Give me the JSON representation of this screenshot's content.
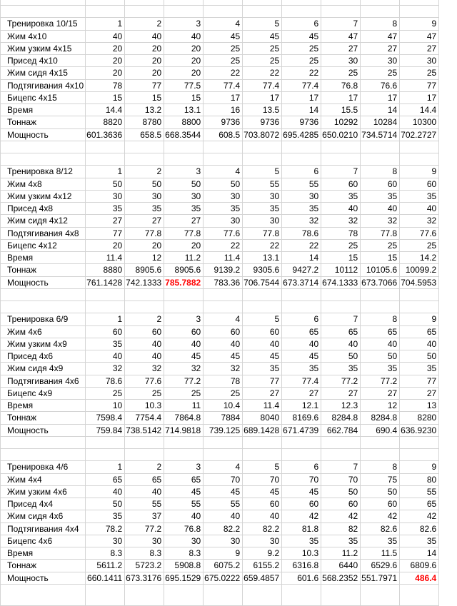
{
  "colors": {
    "grid": "#d4d4d4",
    "text": "#000000",
    "highlight": "#ff0000",
    "background": "#ffffff"
  },
  "sheet": {
    "session_headers": [
      "1",
      "2",
      "3",
      "4",
      "5",
      "6",
      "7",
      "8",
      "9"
    ],
    "blocks": [
      {
        "title": "Тренировка 10/15",
        "rows": [
          {
            "label": "Жим 4x10",
            "values": [
              "40",
              "40",
              "40",
              "45",
              "45",
              "45",
              "47",
              "47",
              "47"
            ]
          },
          {
            "label": "Жим узким 4x15",
            "values": [
              "20",
              "20",
              "20",
              "25",
              "25",
              "25",
              "27",
              "27",
              "27"
            ]
          },
          {
            "label": "Присед 4x10",
            "values": [
              "20",
              "20",
              "20",
              "25",
              "25",
              "25",
              "30",
              "30",
              "30"
            ]
          },
          {
            "label": "Жим сидя 4x15",
            "values": [
              "20",
              "20",
              "20",
              "22",
              "22",
              "22",
              "25",
              "25",
              "25"
            ]
          },
          {
            "label": "Подтягивания 4x10",
            "values": [
              "78",
              "77",
              "77.5",
              "77.4",
              "77.4",
              "77.4",
              "76.8",
              "76.6",
              "77"
            ]
          },
          {
            "label": "Бицепс 4x15",
            "values": [
              "15",
              "15",
              "15",
              "17",
              "17",
              "17",
              "17",
              "17",
              "17"
            ]
          },
          {
            "label": "Время",
            "values": [
              "14.4",
              "13.2",
              "13.1",
              "16",
              "13.5",
              "14",
              "15.5",
              "14",
              "14.4"
            ]
          },
          {
            "label": "Тоннаж",
            "values": [
              "8820",
              "8780",
              "8800",
              "9736",
              "9736",
              "9736",
              "10292",
              "10284",
              "10300"
            ]
          },
          {
            "label": "Мощность",
            "values": [
              "601.3636",
              "658.5",
              "668.3544",
              "608.5",
              "703.8072",
              "695.4285",
              "650.0210",
              "734.5714",
              "702.2727"
            ]
          }
        ]
      },
      {
        "title": "Тренировка 8/12",
        "rows": [
          {
            "label": "Жим 4x8",
            "values": [
              "50",
              "50",
              "50",
              "50",
              "55",
              "55",
              "60",
              "60",
              "60"
            ]
          },
          {
            "label": "Жим узким 4x12",
            "values": [
              "30",
              "30",
              "30",
              "30",
              "30",
              "30",
              "35",
              "35",
              "35"
            ]
          },
          {
            "label": "Присед 4x8",
            "values": [
              "35",
              "35",
              "35",
              "35",
              "35",
              "35",
              "40",
              "40",
              "40"
            ]
          },
          {
            "label": "Жим сидя 4x12",
            "values": [
              "27",
              "27",
              "27",
              "30",
              "30",
              "32",
              "32",
              "32",
              "32"
            ]
          },
          {
            "label": "Подтягивания 4x8",
            "values": [
              "77",
              "77.8",
              "77.8",
              "77.6",
              "77.8",
              "78.6",
              "78",
              "77.8",
              "77.6"
            ]
          },
          {
            "label": "Бицепс 4x12",
            "values": [
              "20",
              "20",
              "20",
              "22",
              "22",
              "22",
              "25",
              "25",
              "25"
            ]
          },
          {
            "label": "Время",
            "values": [
              "11.4",
              "12",
              "11.2",
              "11.4",
              "13.1",
              "14",
              "15",
              "15",
              "14.2"
            ]
          },
          {
            "label": "Тоннаж",
            "values": [
              "8880",
              "8905.6",
              "8905.6",
              "9139.2",
              "9305.6",
              "9427.2",
              "10112",
              "10105.6",
              "10099.2"
            ]
          },
          {
            "label": "Мощность",
            "values": [
              "761.1428",
              "742.1333",
              "785.7882",
              "783.36",
              "706.7544",
              "673.3714",
              "674.1333",
              "673.7066",
              "704.5953"
            ],
            "red_cols": [
              2
            ]
          }
        ]
      },
      {
        "title": "Тренировка 6/9",
        "rows": [
          {
            "label": "Жим 4x6",
            "values": [
              "60",
              "60",
              "60",
              "60",
              "60",
              "65",
              "65",
              "65",
              "65"
            ]
          },
          {
            "label": "Жим узким 4x9",
            "values": [
              "35",
              "40",
              "40",
              "40",
              "40",
              "40",
              "40",
              "40",
              "40"
            ]
          },
          {
            "label": "Присед 4x6",
            "values": [
              "40",
              "40",
              "45",
              "45",
              "45",
              "45",
              "50",
              "50",
              "50"
            ]
          },
          {
            "label": "Жим сидя 4x9",
            "values": [
              "32",
              "32",
              "32",
              "32",
              "35",
              "35",
              "35",
              "35",
              "35"
            ]
          },
          {
            "label": "Подтягивания 4x6",
            "values": [
              "78.6",
              "77.6",
              "77.2",
              "78",
              "77",
              "77.4",
              "77.2",
              "77.2",
              "77"
            ]
          },
          {
            "label": "Бицепс 4x9",
            "values": [
              "25",
              "25",
              "25",
              "25",
              "27",
              "27",
              "27",
              "27",
              "27"
            ]
          },
          {
            "label": "Время",
            "values": [
              "10",
              "10.3",
              "11",
              "10.4",
              "11.4",
              "12.1",
              "12.3",
              "12",
              "13"
            ]
          },
          {
            "label": "Тоннаж",
            "values": [
              "7598.4",
              "7754.4",
              "7864.8",
              "7884",
              "8040",
              "8169.6",
              "8284.8",
              "8284.8",
              "8280"
            ]
          },
          {
            "label": "Мощность",
            "values": [
              "759.84",
              "738.5142",
              "714.9818",
              "739.125",
              "689.1428",
              "671.4739",
              "662.784",
              "690.4",
              "636.9230"
            ]
          }
        ]
      },
      {
        "title": "Тренировка 4/6",
        "rows": [
          {
            "label": "Жим 4x4",
            "values": [
              "65",
              "65",
              "65",
              "70",
              "70",
              "70",
              "70",
              "75",
              "80"
            ]
          },
          {
            "label": "Жим узким 4x6",
            "values": [
              "40",
              "40",
              "45",
              "45",
              "45",
              "45",
              "50",
              "50",
              "55"
            ]
          },
          {
            "label": "Присед 4x4",
            "values": [
              "50",
              "55",
              "55",
              "55",
              "60",
              "60",
              "60",
              "60",
              "65"
            ]
          },
          {
            "label": "Жим сидя 4x6",
            "values": [
              "35",
              "37",
              "40",
              "40",
              "40",
              "42",
              "42",
              "42",
              "42"
            ]
          },
          {
            "label": "Подтягивания 4x4",
            "values": [
              "78.2",
              "77.2",
              "76.8",
              "82.2",
              "82.2",
              "81.8",
              "82",
              "82.6",
              "82.6"
            ]
          },
          {
            "label": "Бицепс 4x6",
            "values": [
              "30",
              "30",
              "30",
              "30",
              "30",
              "35",
              "35",
              "35",
              "35"
            ]
          },
          {
            "label": "Время",
            "values": [
              "8.3",
              "8.3",
              "8.3",
              "9",
              "9.2",
              "10.3",
              "11.2",
              "11.5",
              "14"
            ]
          },
          {
            "label": "Тоннаж",
            "values": [
              "5611.2",
              "5723.2",
              "5908.8",
              "6075.2",
              "6155.2",
              "6316.8",
              "6440",
              "6529.6",
              "6809.6"
            ]
          },
          {
            "label": "Мощность",
            "values": [
              "660.1411",
              "673.3176",
              "695.1529",
              "675.0222",
              "659.4857",
              "601.6",
              "568.2352",
              "551.7971",
              "486.4"
            ],
            "red_cols": [
              8
            ]
          }
        ]
      }
    ]
  }
}
